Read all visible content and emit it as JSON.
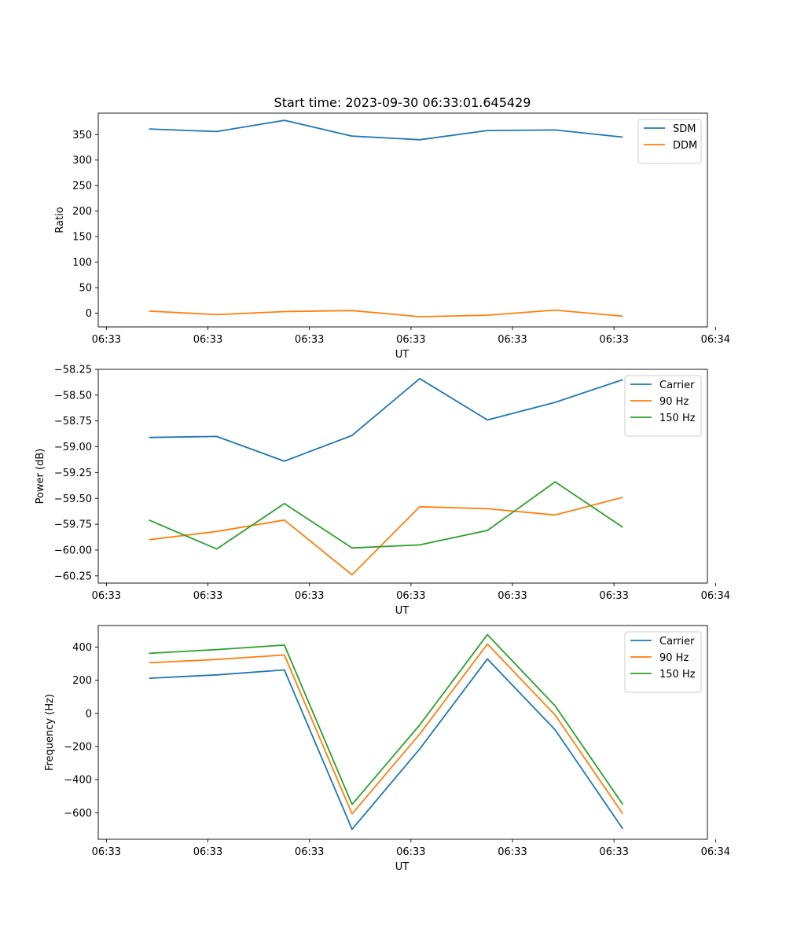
{
  "figure_title": "Start time: 2023-09-30 06:33:01.645429",
  "colors": {
    "blue": "#1f77b4",
    "orange": "#ff7f0e",
    "green": "#2ca02c"
  },
  "chart_data": [
    {
      "type": "line",
      "title": "Start time: 2023-09-30 06:33:01.645429",
      "xlabel": "UT",
      "ylabel": "Ratio",
      "x": [
        1,
        2,
        3,
        4,
        5,
        6,
        7,
        8
      ],
      "xlim": [
        0.25,
        9.25
      ],
      "xticks": [
        0.37,
        1.87,
        3.37,
        4.87,
        6.37,
        7.87,
        9.37
      ],
      "xtick_labels": [
        "06:33",
        "06:33",
        "06:33",
        "06:33",
        "06:33",
        "06:33",
        "06:34"
      ],
      "ylim": [
        -27,
        392
      ],
      "yticks": [
        0,
        50,
        100,
        150,
        200,
        250,
        300,
        350
      ],
      "ytick_labels": [
        "0",
        "50",
        "100",
        "150",
        "200",
        "250",
        "300",
        "350"
      ],
      "legend_position": "top-right",
      "series": [
        {
          "name": "SDM",
          "color": "#1f77b4",
          "values": [
            361,
            356,
            378,
            347,
            340,
            358,
            359,
            345
          ]
        },
        {
          "name": "DDM",
          "color": "#ff7f0e",
          "values": [
            4,
            -3,
            3,
            5,
            -7,
            -4,
            6,
            -6
          ]
        }
      ]
    },
    {
      "type": "line",
      "title": "",
      "xlabel": "UT",
      "ylabel": "Power (dB)",
      "x": [
        1,
        2,
        3,
        4,
        5,
        6,
        7,
        8
      ],
      "xlim": [
        0.25,
        9.25
      ],
      "xticks": [
        0.37,
        1.87,
        3.37,
        4.87,
        6.37,
        7.87,
        9.37
      ],
      "xtick_labels": [
        "06:33",
        "06:33",
        "06:33",
        "06:33",
        "06:33",
        "06:33",
        "06:34"
      ],
      "ylim": [
        -60.32,
        -58.25
      ],
      "yticks": [
        -58.25,
        -58.5,
        -58.75,
        -59.0,
        -59.25,
        -59.5,
        -59.75,
        -60.0,
        -60.25
      ],
      "ytick_labels": [
        "−58.25",
        "−58.50",
        "−58.75",
        "−59.00",
        "−59.25",
        "−59.50",
        "−59.75",
        "−60.00",
        "−60.25"
      ],
      "legend_position": "top-right",
      "series": [
        {
          "name": "Carrier",
          "color": "#1f77b4",
          "values": [
            -58.91,
            -58.9,
            -59.14,
            -58.89,
            -58.34,
            -58.74,
            -58.57,
            -58.35
          ]
        },
        {
          "name": "90 Hz",
          "color": "#ff7f0e",
          "values": [
            -59.9,
            -59.82,
            -59.71,
            -60.24,
            -59.58,
            -59.6,
            -59.66,
            -59.49
          ]
        },
        {
          "name": "150 Hz",
          "color": "#2ca02c",
          "values": [
            -59.71,
            -59.99,
            -59.55,
            -59.98,
            -59.95,
            -59.81,
            -59.34,
            -59.78
          ]
        }
      ]
    },
    {
      "type": "line",
      "title": "",
      "xlabel": "UT",
      "ylabel": "Frequency (Hz)",
      "x": [
        1,
        2,
        3,
        4,
        5,
        6,
        7,
        8
      ],
      "xlim": [
        0.25,
        9.25
      ],
      "xticks": [
        0.37,
        1.87,
        3.37,
        4.87,
        6.37,
        7.87,
        9.37
      ],
      "xtick_labels": [
        "06:33",
        "06:33",
        "06:33",
        "06:33",
        "06:33",
        "06:33",
        "06:34"
      ],
      "ylim": [
        -760,
        530
      ],
      "yticks": [
        400,
        200,
        0,
        -200,
        -400,
        -600
      ],
      "ytick_labels": [
        "400",
        "200",
        "0",
        "−200",
        "−400",
        "−600"
      ],
      "legend_position": "top-right",
      "series": [
        {
          "name": "Carrier",
          "color": "#1f77b4",
          "values": [
            212,
            232,
            262,
            -700,
            -215,
            328,
            -100,
            -697
          ]
        },
        {
          "name": "90 Hz",
          "color": "#ff7f0e",
          "values": [
            305,
            325,
            352,
            -607,
            -125,
            418,
            -10,
            -607
          ]
        },
        {
          "name": "150 Hz",
          "color": "#2ca02c",
          "values": [
            362,
            385,
            412,
            -550,
            -70,
            475,
            45,
            -550
          ]
        }
      ]
    }
  ]
}
